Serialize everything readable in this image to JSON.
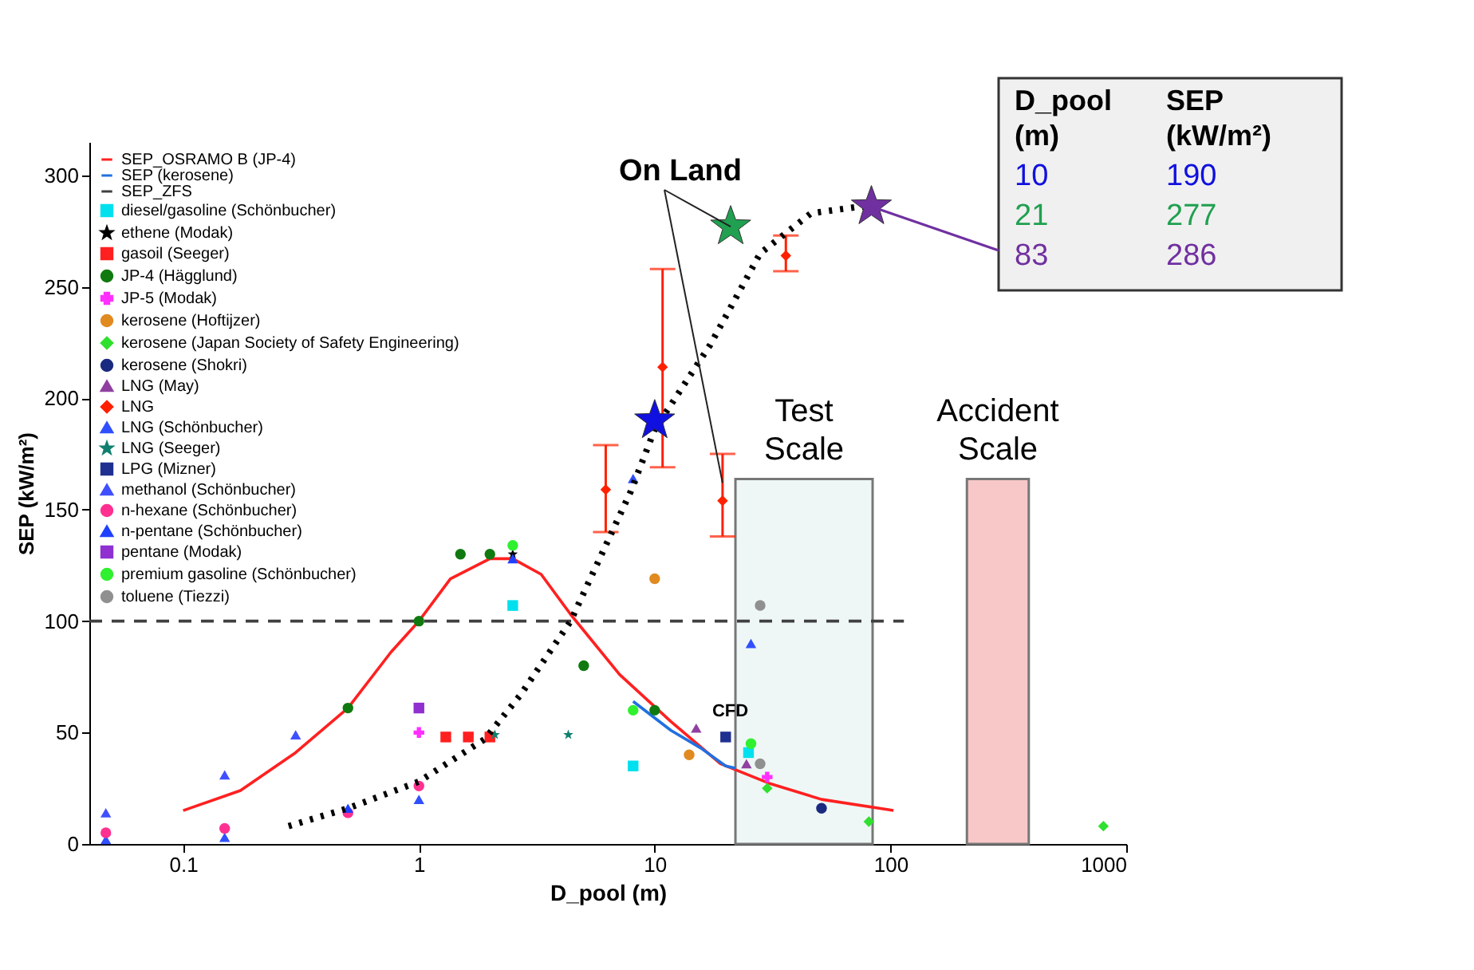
{
  "chart_data": {
    "type": "scatter",
    "xlabel": "D_pool (m)",
    "ylabel": "SEP (kW/m²)",
    "log": "x",
    "xlim": [
      0.04,
      1000
    ],
    "xticks": [
      0.1,
      1,
      10,
      100,
      1000
    ],
    "ylim": [
      0,
      315
    ],
    "yticks": [
      0,
      50,
      100,
      150,
      200,
      250,
      300
    ],
    "grid": false,
    "legend": "top left",
    "series": [
      {
        "name": "SEP_OSRAMO B (JP-4)",
        "type": "line",
        "line_style": "solid",
        "marker": "none",
        "color": "#ff2020",
        "x": [
          0.1,
          0.175,
          0.3,
          0.5,
          0.76,
          1,
          1.36,
          2,
          2.5,
          3.3,
          4.4,
          7.1,
          11.7,
          19,
          31,
          51,
          103
        ],
        "values": [
          15,
          24,
          41,
          61,
          86,
          100,
          119,
          128,
          128,
          121,
          103,
          76,
          55,
          36,
          27,
          20,
          15
        ]
      },
      {
        "name": "SEP (kerosene)",
        "type": "line",
        "line_style": "solid",
        "marker": "none",
        "color": "#2070e0",
        "x": [
          8.1,
          11.7,
          15.7,
          20,
          22
        ],
        "values": [
          64,
          51,
          43,
          35,
          34
        ]
      },
      {
        "name": "SEP_ZFS",
        "type": "line",
        "line_style": "dashed",
        "marker": "none",
        "color": "#404040",
        "x": [
          0.04,
          114
        ],
        "values": [
          100,
          100
        ]
      },
      {
        "name": "diesel/gasoline (Schönbucher)",
        "marker": "square",
        "color": "#00e0ee",
        "x": [
          2.5,
          8.1,
          25
        ],
        "values": [
          107,
          35,
          41
        ]
      },
      {
        "name": "ethene (Modak)",
        "marker": "star",
        "color": "#000000",
        "x": [
          2.5
        ],
        "values": [
          130
        ]
      },
      {
        "name": "gasoil (Seeger)",
        "marker": "square",
        "color": "#ff2020",
        "x": [
          1.3,
          1.62,
          2.0
        ],
        "values": [
          48,
          48,
          48
        ]
      },
      {
        "name": "JP-4 (Hägglund)",
        "marker": "circle",
        "color": "#107a10",
        "x": [
          0.5,
          1,
          1.5,
          2,
          5,
          10
        ],
        "values": [
          61,
          100,
          130,
          130,
          80,
          60
        ]
      },
      {
        "name": "JP-5 (Modak)",
        "marker": "cross",
        "color": "#ff30ff",
        "x": [
          1,
          30
        ],
        "values": [
          50,
          30
        ]
      },
      {
        "name": "kerosene (Hoftijzer)",
        "marker": "circle",
        "color": "#e08a20",
        "x": [
          10,
          14
        ],
        "values": [
          119,
          40
        ]
      },
      {
        "name": "kerosene (Japan Society of Safety Engineering)",
        "marker": "diamond",
        "color": "#30e030",
        "x": [
          30,
          81,
          800
        ],
        "values": [
          25,
          10,
          8
        ]
      },
      {
        "name": "kerosene (Shokri)",
        "marker": "circle",
        "color": "#1a2a80",
        "x": [
          51
        ],
        "values": [
          16
        ]
      },
      {
        "name": "LNG (May)",
        "marker": "triangle",
        "color": "#9040a0",
        "x": [
          15,
          24.5
        ],
        "values": [
          52,
          36
        ]
      },
      {
        "name": "LNG",
        "marker": "diamond",
        "color": "#ff2000",
        "x": [
          6.2,
          10.8,
          19.4,
          36
        ],
        "values": [
          159,
          214,
          154,
          264
        ],
        "errors": [
          [
            140,
            179
          ],
          [
            169,
            258
          ],
          [
            138,
            175
          ],
          [
            257,
            273
          ]
        ]
      },
      {
        "name": "LNG (Schönbucher)",
        "marker": "triangle",
        "color": "#3050ff",
        "x": [
          0.047,
          0.15,
          1,
          8.1,
          25.6
        ],
        "values": [
          2,
          3,
          20,
          164,
          90
        ]
      },
      {
        "name": "LNG (Seeger)",
        "marker": "star",
        "color": "#108070",
        "x": [
          2.1,
          4.3
        ],
        "values": [
          49,
          49
        ]
      },
      {
        "name": "LPG (Mizner)",
        "marker": "square",
        "color": "#203090",
        "x": [
          20
        ],
        "values": [
          48
        ]
      },
      {
        "name": "methanol (Schönbucher)",
        "marker": "triangle",
        "color": "#4050ff",
        "x": [
          0.047,
          0.15,
          0.3
        ],
        "values": [
          14,
          31,
          49
        ]
      },
      {
        "name": "n-hexane (Schönbucher)",
        "marker": "circle",
        "color": "#ff3090",
        "x": [
          0.047,
          0.15,
          0.5,
          1
        ],
        "values": [
          5,
          7,
          14,
          26
        ]
      },
      {
        "name": "n-pentane (Schönbucher)",
        "marker": "triangle",
        "color": "#2040ff",
        "x": [
          0.5,
          2.5
        ],
        "values": [
          16,
          128
        ]
      },
      {
        "name": "pentane (Modak)",
        "marker": "square",
        "color": "#9030d0",
        "x": [
          1
        ],
        "values": [
          61
        ]
      },
      {
        "name": "premium gasoline (Schönbucher)",
        "marker": "circle",
        "color": "#30f030",
        "x": [
          2.5,
          8.1,
          25.6
        ],
        "values": [
          134,
          60,
          45
        ]
      },
      {
        "name": "toluene (Tiezzi)",
        "marker": "circle",
        "color": "#909090",
        "x": [
          28,
          28
        ],
        "values": [
          107,
          36
        ]
      },
      {
        "type": "line",
        "line_style": "dotted",
        "marker": "none",
        "color": "#000000",
        "x": [
          0.28,
          0.5,
          1,
          1.9,
          2.7,
          4.4,
          7.9,
          10,
          17.2,
          28,
          46,
          74,
          82
        ],
        "values": [
          8,
          16,
          28,
          47,
          67,
          100,
          158,
          186,
          224,
          265,
          283,
          286,
          286
        ]
      },
      {
        "marker": "star",
        "colors": [
          "#1010e0",
          "#20a050",
          "#7030a0"
        ],
        "x": [
          10,
          21,
          83
        ],
        "values": [
          190,
          277,
          286
        ]
      }
    ],
    "bands": [
      {
        "axis": "x",
        "from": 22,
        "to": 84,
        "label": "Test Scale",
        "color": "#eef7f6"
      },
      {
        "axis": "x",
        "from": 211,
        "to": 386,
        "label": "Accident Scale",
        "color": "#f8c8c8"
      }
    ],
    "annotations": [
      {
        "text": "On Land",
        "x": 21,
        "y": 277
      },
      "CFD",
      "D_pool (m)",
      "SEP (kW/m²)",
      "10",
      "190",
      "21",
      "277",
      {
        "text": "83",
        "x": 83,
        "y": 286
      },
      "286"
    ]
  }
}
